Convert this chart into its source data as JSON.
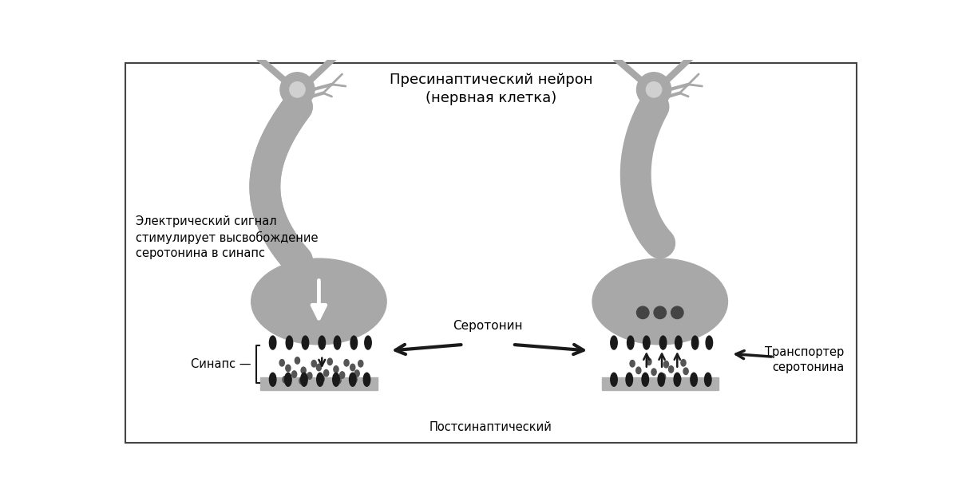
{
  "bg_color": "#ffffff",
  "neuron_color": "#a8a8a8",
  "dark_color": "#1a1a1a",
  "synapse_dot_color": "#555555",
  "receptor_color": "#2a2a2a",
  "post_mem_color": "#b0b0b0",
  "title_text": "Пресинаптический нейрон\n(нервная клетка)",
  "label_signal": "Электрический сигнал\nстимулирует высвобождение\nсеротонина в синапс",
  "label_synapse": "Синапс",
  "label_serotonin": "Серотонин",
  "label_transporter": "Транспортер\nсеротонина",
  "label_postsynaptic": "Постсинаптический",
  "border_color": "#444444",
  "nucleus_color": "#d0d0d0"
}
